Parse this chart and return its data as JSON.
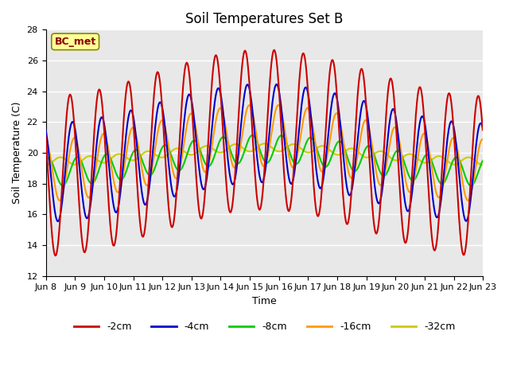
{
  "title": "Soil Temperatures Set B",
  "xlabel": "Time",
  "ylabel": "Soil Temperature (C)",
  "ylim": [
    12,
    28
  ],
  "yticks": [
    12,
    14,
    16,
    18,
    20,
    22,
    24,
    26,
    28
  ],
  "background_color": "#e8e8e8",
  "annotation_text": "BC_met",
  "annotation_color": "#8B0000",
  "annotation_bg": "#ffff99",
  "series": {
    "-2cm": {
      "color": "#cc0000",
      "lw": 1.5
    },
    "-4cm": {
      "color": "#0000cc",
      "lw": 1.5
    },
    "-8cm": {
      "color": "#00cc00",
      "lw": 1.5
    },
    "-16cm": {
      "color": "#ff9900",
      "lw": 1.5
    },
    "-32cm": {
      "color": "#cccc00",
      "lw": 1.5
    }
  },
  "xtick_labels": [
    "Jun 8",
    "Jun 9",
    "Jun 10",
    "Jun 11",
    "Jun 12",
    "Jun 13",
    "Jun 14",
    "Jun 15",
    "Jun 16",
    "Jun 17",
    "Jun 18",
    "Jun 19",
    "Jun 20",
    "Jun 21",
    "Jun 22",
    "Jun 23"
  ],
  "legend_ncol": 5,
  "n_days": 15,
  "period": 24,
  "mean_2cm": 20.0,
  "amp_2cm": 5.2,
  "phase_2cm": 14.0,
  "mean_4cm": 20.0,
  "amp_4cm": 3.2,
  "phase_4cm": 16.0,
  "mean_8cm": 19.5,
  "amp_8cm": 0.9,
  "phase_8cm": 20.0,
  "mean_16cm": 20.0,
  "amp_16cm": 2.0,
  "phase_16cm": 17.5,
  "mean_32cm": 19.9,
  "amp_32cm": 0.25,
  "phase_32cm": 30.0,
  "trend_amp": 1.5
}
